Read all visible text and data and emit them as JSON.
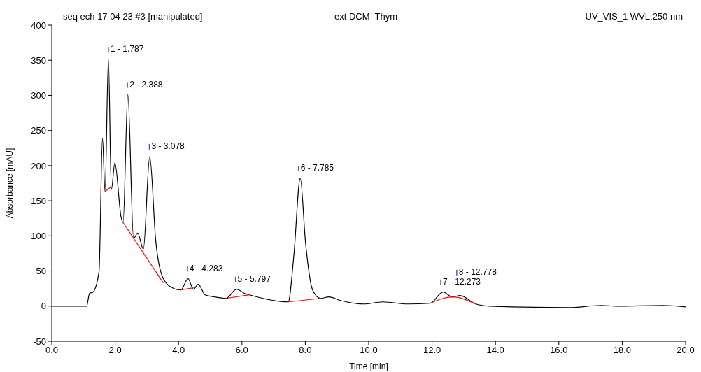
{
  "chart_data": {
    "type": "line",
    "title": "seq ech 17 04 23 #3 [manipulated]",
    "subtitle": "- ext DCM  Thym",
    "xlabel": "Time [min]",
    "ylabel": "Absorbance [mAU]",
    "annotations": [
      "UV_VIS_1 WVL:250 nm",
      {
        "text": "1 - 1.787",
        "x": 1.787,
        "y": 351
      },
      {
        "text": "2 - 2.388",
        "x": 2.388,
        "y": 301
      },
      {
        "text": "3 - 3.078",
        "x": 3.078,
        "y": 213
      },
      {
        "text": "4 - 4.283",
        "x": 4.283,
        "y": 39
      },
      {
        "text": "5 - 5.797",
        "x": 5.797,
        "y": 24
      },
      {
        "text": "6 - 7.785",
        "x": 7.785,
        "y": 182
      },
      {
        "text": "7 - 12.273",
        "x": 12.273,
        "y": 20
      },
      {
        "text": "8 - 12.778",
        "x": 12.778,
        "y": 15
      }
    ],
    "xlim": [
      0,
      20
    ],
    "xticks": [
      {
        "value": 0,
        "label": "0.0"
      },
      {
        "value": 2,
        "label": "2.0"
      },
      {
        "value": 4,
        "label": "4.0"
      },
      {
        "value": 6,
        "label": "6.0"
      },
      {
        "value": 8,
        "label": "8.0"
      },
      {
        "value": 10,
        "label": "10.0"
      },
      {
        "value": 12,
        "label": "12.0"
      },
      {
        "value": 14,
        "label": "14.0"
      },
      {
        "value": 16,
        "label": "16.0"
      },
      {
        "value": 18,
        "label": "18.0"
      },
      {
        "value": 20,
        "label": "20.0"
      }
    ],
    "ylim": [
      -50,
      400
    ],
    "yticks": [
      -50,
      0,
      50,
      100,
      150,
      200,
      250,
      300,
      350,
      400
    ],
    "legend": false,
    "marker": "none",
    "line_style": "solid",
    "series": [
      {
        "color": "#000000",
        "x": [
          0,
          1.1,
          1.19,
          1.3,
          1.49,
          1.6,
          1.68,
          1.787,
          1.88,
          1.99,
          2.19,
          2.25,
          2.4,
          2.58,
          2.71,
          2.89,
          3.09,
          3.28,
          3.52,
          3.81,
          4.07,
          4.3,
          4.47,
          4.62,
          4.84,
          5.14,
          5.5,
          5.83,
          6.09,
          6.24,
          7.46,
          7.64,
          7.84,
          8.01,
          8.23,
          8.48,
          8.74,
          9.11,
          9.85,
          10.44,
          11.24,
          11.94,
          12.35,
          12.64,
          12.88,
          13.38,
          13.82,
          16.3,
          17.35,
          17.8,
          19.27,
          20
        ],
        "values": [
          0,
          0,
          18,
          20,
          49,
          239,
          163,
          351,
          166,
          204,
          126,
          119,
          301,
          96,
          104,
          81,
          213,
          93,
          39,
          26,
          23,
          39,
          24,
          31,
          16,
          13,
          11,
          24,
          18,
          16,
          6,
          73,
          182,
          89,
          23,
          11,
          13,
          8,
          3,
          6,
          3,
          4,
          20,
          13,
          15,
          3,
          0,
          -2,
          1,
          0,
          1,
          -1
        ]
      },
      {
        "color": "#ff0000",
        "x": [
          1.68,
          1.88
        ],
        "values": [
          163,
          170
        ]
      },
      {
        "color": "#ff0000",
        "x": [
          2.25,
          3.52
        ],
        "values": [
          119,
          33
        ]
      },
      {
        "color": "#ff0000",
        "x": [
          4.07,
          4.47
        ],
        "values": [
          23,
          26
        ]
      },
      {
        "color": "#ff0000",
        "x": [
          5.5,
          6.24
        ],
        "values": [
          11,
          16
        ]
      },
      {
        "color": "#ff0000",
        "x": [
          7.46,
          8.48
        ],
        "values": [
          6,
          11
        ]
      },
      {
        "color": "#ff0000",
        "x": [
          11.94,
          12.64,
          13.38
        ],
        "values": [
          4,
          13,
          3
        ]
      }
    ]
  }
}
